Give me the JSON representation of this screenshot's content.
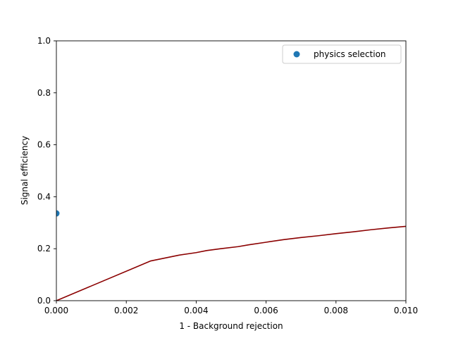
{
  "chart_data": {
    "type": "line",
    "title": "",
    "xlabel": "1 - Background rejection",
    "ylabel": "Signal efficiency",
    "xlim": [
      0,
      0.01
    ],
    "ylim": [
      0,
      1.0
    ],
    "x_ticks": [
      0,
      0.002,
      0.004,
      0.006,
      0.008,
      0.01
    ],
    "x_tick_labels": [
      "0.000",
      "0.002",
      "0.004",
      "0.006",
      "0.008",
      "0.010"
    ],
    "y_ticks": [
      0,
      0.2,
      0.4,
      0.6,
      0.8,
      1.0
    ],
    "y_tick_labels": [
      "0.0",
      "0.2",
      "0.4",
      "0.6",
      "0.8",
      "1.0"
    ],
    "grid": false,
    "legend": {
      "placement": "top-right",
      "entries": [
        "physics selection"
      ]
    },
    "series": [
      {
        "kind": "line",
        "color": "#8b0000",
        "x": [
          0,
          0.0027,
          0.0035,
          0.004,
          0.0043,
          0.0047,
          0.0052,
          0.0055,
          0.006,
          0.0065,
          0.007,
          0.0075,
          0.008,
          0.0085,
          0.009,
          0.0095,
          0.01
        ],
        "y": [
          0,
          0.153,
          0.175,
          0.185,
          0.193,
          0.2,
          0.208,
          0.215,
          0.225,
          0.235,
          0.243,
          0.25,
          0.258,
          0.265,
          0.273,
          0.28,
          0.286
        ]
      },
      {
        "name": "physics selection",
        "kind": "scatter",
        "color": "#1f77b4",
        "x": [
          0
        ],
        "y": [
          0.336
        ]
      }
    ]
  }
}
